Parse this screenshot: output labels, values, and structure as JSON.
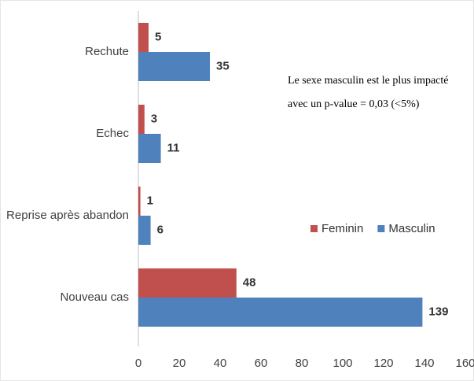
{
  "chart_data": {
    "type": "hbar",
    "categories": [
      "Rechute",
      "Echec",
      "Reprise après abandon",
      "Nouveau cas"
    ],
    "series": [
      {
        "name": "Feminin",
        "color": "#c0504d",
        "values": [
          5,
          3,
          1,
          48
        ]
      },
      {
        "name": "Masculin",
        "color": "#4f81bd",
        "values": [
          35,
          11,
          6,
          139
        ]
      }
    ],
    "xlim": [
      0,
      160
    ],
    "xticks": [
      0,
      20,
      40,
      60,
      80,
      100,
      120,
      140,
      160
    ],
    "annotations": [
      "Le sexe masculin est le plus impacté",
      "avec un p-value  = 0,03 (<5%)"
    ],
    "legend": "right"
  }
}
